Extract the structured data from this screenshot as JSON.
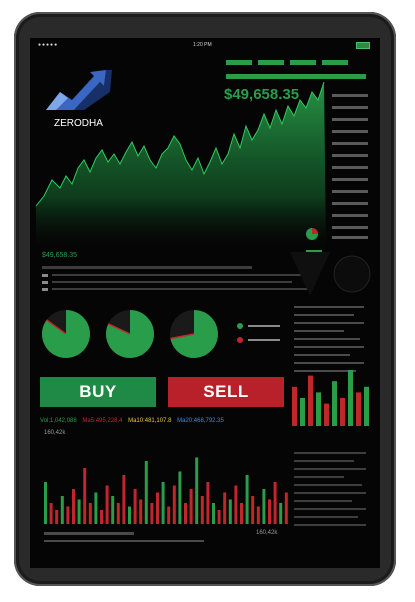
{
  "colors": {
    "green": "#2a9d4a",
    "red": "#c0272d",
    "yellow": "#e8c840",
    "blue": "#3a8fd8",
    "grey": "#9a9a9a"
  },
  "status_bar": {
    "signal": "●●●●●",
    "time": "1:20 PM"
  },
  "brand": {
    "name": "ZERODHA",
    "logo_icon": "rising-arrow-logo-icon"
  },
  "ticker": {
    "price": "$49,658.35",
    "price_small": "$49,658.35"
  },
  "actions": {
    "buy_label": "BUY",
    "sell_label": "SELL"
  },
  "indicators": {
    "vol": "Vol:1,042,088",
    "ma5": "Ma5:495,228.4",
    "ma10": "Ma10:481,107.8",
    "ma20": "Ma20:468,792.35"
  },
  "volume": {
    "top_label": "160,42k",
    "bottom_label": "160,42k"
  },
  "pies": [
    {
      "main_fraction": 0.85
    },
    {
      "main_fraction": 0.82
    },
    {
      "main_fraction": 0.72
    }
  ]
}
